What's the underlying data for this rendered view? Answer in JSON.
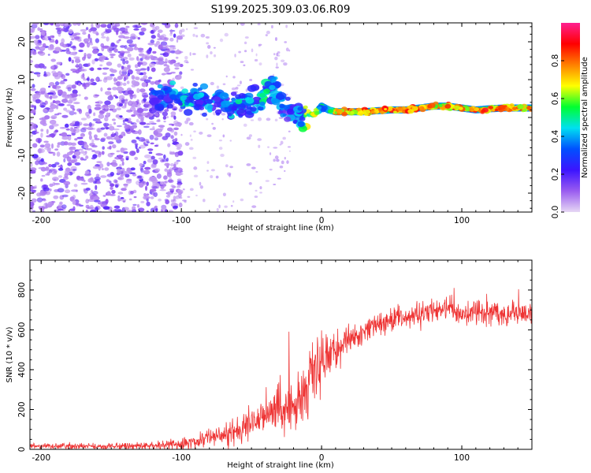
{
  "figure_title": "S199.2025.309.03.06.R09",
  "chart_data": [
    {
      "type": "heatmap",
      "title": "S199.2025.309.03.06.R09",
      "xlabel": "Height of straight line (km)",
      "ylabel": "Frequency (Hz)",
      "xlim": [
        -208,
        150
      ],
      "ylim": [
        -25,
        25
      ],
      "xticks": [
        -200,
        -100,
        0,
        100
      ],
      "xtick_labels": [
        "-200",
        "-100",
        "0",
        "100"
      ],
      "yticks": [
        -20,
        -10,
        0,
        10,
        20
      ],
      "ytick_labels": [
        "-20",
        "-10",
        "0",
        "10",
        "20"
      ],
      "grid": false,
      "colorbar": {
        "label": "Normalized spectral amplitude",
        "range": [
          0,
          1
        ],
        "ticks": [
          0.0,
          0.2,
          0.4,
          0.6,
          0.8
        ],
        "tick_labels": [
          "0.0",
          "0.2",
          "0.4",
          "0.6",
          "0.8"
        ],
        "colors": [
          "#e6d7f4",
          "#9a5cf0",
          "#3c14ff",
          "#0050ff",
          "#00e0f0",
          "#00ff30",
          "#ffff00",
          "#ff8000",
          "#ff0000",
          "#ff2090"
        ]
      },
      "ridge": {
        "x": [
          -120,
          -110,
          -100,
          -90,
          -80,
          -70,
          -60,
          -50,
          -40,
          -35,
          -30,
          -25,
          -20,
          -15,
          -10,
          -5,
          0,
          5,
          10,
          20,
          30,
          40,
          50,
          60,
          70,
          80,
          90,
          100,
          110,
          120,
          130,
          140,
          150
        ],
        "y": [
          5,
          5.5,
          5,
          4.5,
          4,
          3.5,
          3,
          4,
          6,
          8,
          5,
          3,
          1,
          1,
          1,
          1,
          3,
          2,
          1.5,
          1.5,
          1.5,
          1.8,
          2,
          2,
          2.5,
          3,
          3,
          2.5,
          2,
          2.3,
          2.5,
          2.5,
          2.5
        ],
        "amplitude": [
          0.25,
          0.3,
          0.35,
          0.3,
          0.3,
          0.3,
          0.35,
          0.3,
          0.4,
          0.3,
          0.3,
          0.25,
          0.3,
          0.35,
          0.5,
          0.7,
          0.35,
          0.5,
          0.8,
          0.85,
          0.85,
          0.9,
          0.9,
          0.88,
          0.9,
          0.8,
          0.85,
          0.8,
          0.9,
          0.88,
          0.85,
          0.85,
          0.85
        ]
      },
      "noise_region": {
        "x_range": [
          -208,
          -110
        ],
        "y_range": [
          -25,
          25
        ],
        "amplitude_range": [
          0.05,
          0.2
        ]
      }
    },
    {
      "type": "line",
      "xlabel": "Height of straight line (km)",
      "ylabel": "SNR (10 * v/v)",
      "xlim": [
        -208,
        150
      ],
      "ylim": [
        0,
        950
      ],
      "xticks": [
        -200,
        -100,
        0,
        100
      ],
      "xtick_labels": [
        "-200",
        "-100",
        "0",
        "100"
      ],
      "yticks": [
        0,
        200,
        400,
        600,
        800
      ],
      "ytick_labels": [
        "0",
        "200",
        "400",
        "600",
        "800"
      ],
      "color": "#ee3333",
      "grid": false,
      "series": [
        {
          "name": "SNR",
          "x": [
            -208,
            -180,
            -150,
            -120,
            -100,
            -90,
            -80,
            -70,
            -60,
            -50,
            -40,
            -30,
            -20,
            -15,
            -10,
            -5,
            0,
            5,
            10,
            15,
            20,
            30,
            40,
            50,
            60,
            70,
            80,
            90,
            100,
            110,
            120,
            130,
            140,
            150
          ],
          "values": [
            15,
            15,
            15,
            18,
            25,
            40,
            60,
            80,
            100,
            130,
            170,
            210,
            230,
            260,
            320,
            400,
            450,
            470,
            500,
            530,
            550,
            590,
            630,
            650,
            660,
            680,
            700,
            700,
            690,
            700,
            690,
            680,
            690,
            680
          ],
          "spread": [
            15,
            15,
            15,
            18,
            30,
            40,
            50,
            60,
            70,
            80,
            100,
            120,
            150,
            160,
            170,
            150,
            120,
            100,
            90,
            80,
            70,
            60,
            60,
            60,
            60,
            60,
            60,
            60,
            60,
            60,
            60,
            60,
            60,
            60
          ]
        }
      ]
    }
  ]
}
